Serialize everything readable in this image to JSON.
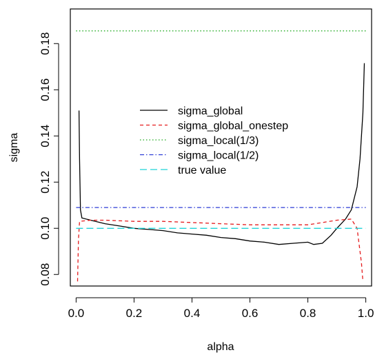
{
  "chart_data": {
    "type": "line",
    "xlabel": "alpha",
    "ylabel": "sigma",
    "xlim": [
      -0.02,
      1.02
    ],
    "ylim": [
      0.075,
      0.195
    ],
    "x_ticks": [
      "0.0",
      "0.2",
      "0.4",
      "0.6",
      "0.8",
      "1.0"
    ],
    "x_tick_values": [
      0.0,
      0.2,
      0.4,
      0.6,
      0.8,
      1.0
    ],
    "y_ticks": [
      "0.08",
      "0.10",
      "0.12",
      "0.14",
      "0.16",
      "0.18"
    ],
    "y_tick_values": [
      0.08,
      0.1,
      0.12,
      0.14,
      0.16,
      0.18
    ],
    "grid": false,
    "legend_position": "center",
    "series": [
      {
        "name": "sigma_global",
        "color": "#000000",
        "dash": "solid",
        "points": [
          [
            0.01,
            0.151
          ],
          [
            0.012,
            0.13
          ],
          [
            0.015,
            0.108
          ],
          [
            0.02,
            0.1045
          ],
          [
            0.05,
            0.1035
          ],
          [
            0.1,
            0.102
          ],
          [
            0.15,
            0.101
          ],
          [
            0.2,
            0.1
          ],
          [
            0.25,
            0.0995
          ],
          [
            0.3,
            0.099
          ],
          [
            0.35,
            0.098
          ],
          [
            0.4,
            0.0975
          ],
          [
            0.45,
            0.097
          ],
          [
            0.5,
            0.096
          ],
          [
            0.55,
            0.0955
          ],
          [
            0.6,
            0.0945
          ],
          [
            0.65,
            0.094
          ],
          [
            0.7,
            0.093
          ],
          [
            0.75,
            0.0935
          ],
          [
            0.8,
            0.094
          ],
          [
            0.82,
            0.093
          ],
          [
            0.85,
            0.0935
          ],
          [
            0.88,
            0.097
          ],
          [
            0.9,
            0.1
          ],
          [
            0.93,
            0.104
          ],
          [
            0.95,
            0.108
          ],
          [
            0.97,
            0.118
          ],
          [
            0.98,
            0.13
          ],
          [
            0.99,
            0.15
          ],
          [
            0.995,
            0.1715
          ]
        ]
      },
      {
        "name": "sigma_global_onestep",
        "color": "#e41a1c",
        "dash": "dashed",
        "points": [
          [
            0.005,
            0.077
          ],
          [
            0.008,
            0.095
          ],
          [
            0.012,
            0.103
          ],
          [
            0.05,
            0.1035
          ],
          [
            0.1,
            0.1035
          ],
          [
            0.2,
            0.103
          ],
          [
            0.3,
            0.103
          ],
          [
            0.4,
            0.1025
          ],
          [
            0.5,
            0.102
          ],
          [
            0.6,
            0.1015
          ],
          [
            0.7,
            0.1015
          ],
          [
            0.8,
            0.1015
          ],
          [
            0.85,
            0.1025
          ],
          [
            0.9,
            0.1035
          ],
          [
            0.95,
            0.104
          ],
          [
            0.97,
            0.1
          ],
          [
            0.985,
            0.085
          ],
          [
            0.99,
            0.077
          ]
        ]
      },
      {
        "name": "sigma_local(1/3)",
        "color": "#1aa81a",
        "dash": "dotted",
        "points": [
          [
            0.0,
            0.1855
          ],
          [
            1.0,
            0.1855
          ]
        ]
      },
      {
        "name": "sigma_local(1/2)",
        "color": "#2b3bd6",
        "dash": "dashdot",
        "points": [
          [
            0.0,
            0.109
          ],
          [
            1.0,
            0.109
          ]
        ]
      },
      {
        "name": "true value",
        "color": "#1fd3d8",
        "dash": "longdash",
        "points": [
          [
            0.0,
            0.1
          ],
          [
            1.0,
            0.1
          ]
        ]
      }
    ]
  }
}
